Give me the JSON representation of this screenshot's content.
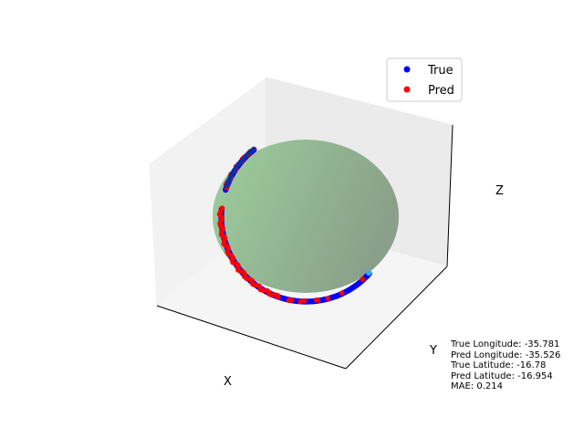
{
  "chart_data": {
    "type": "scatter",
    "projection": "3d",
    "xlabel": "X",
    "ylabel": "Y",
    "zlabel": "Z",
    "grid": false,
    "ticks_visible": false,
    "legend_placement": "top-right",
    "surface": {
      "shape": "sphere",
      "color": "#8fbf8f"
    },
    "series": [
      {
        "name": "True",
        "color": "#0000ff",
        "description_of_points": "arc of points on sphere surface"
      },
      {
        "name": "Pred",
        "color": "#ff0000",
        "description_of_points": "arc of points on sphere surface"
      }
    ],
    "annotations": [
      {
        "key": "true_longitude",
        "label": "True Longitude",
        "value": "-35.781"
      },
      {
        "key": "pred_longitude",
        "label": "Pred Longitude",
        "value": "-35.526"
      },
      {
        "key": "true_latitude",
        "label": "True Latitude",
        "value": "-16.78"
      },
      {
        "key": "pred_latitude",
        "label": "Pred Latitude",
        "value": "-16.954"
      },
      {
        "key": "mae",
        "label": "MAE",
        "value": "0.214"
      }
    ]
  },
  "info_lines": [
    "True Longitude: -35.781",
    "Pred Longitude: -35.526",
    "True Latitude: -16.78",
    "Pred Latitude: -16.954",
    "MAE: 0.214"
  ]
}
